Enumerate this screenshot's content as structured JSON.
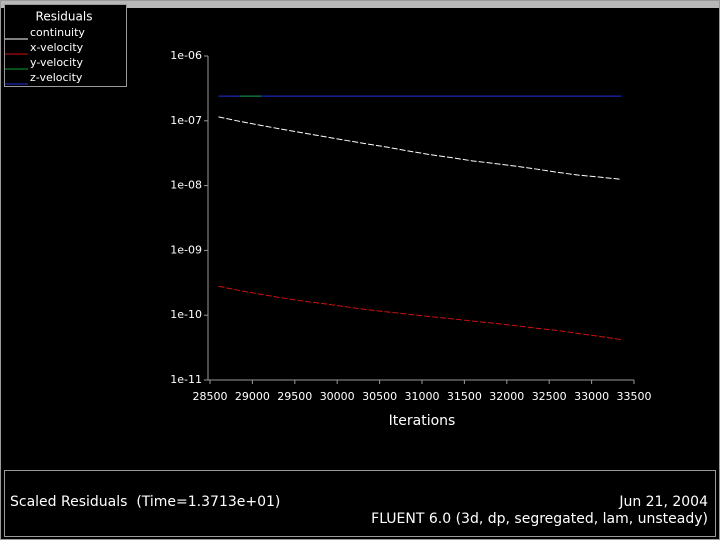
{
  "chart_data": {
    "type": "line",
    "title": "Scaled Residuals  (Time=1.3713e+01)",
    "annotations": [
      "Jun 21, 2004",
      "FLUENT 6.0 (3d, dp, segregated, lam, unsteady)"
    ],
    "legend_title": "Residuals",
    "legend": "top-left",
    "xlabel": "Iterations",
    "log_y": true,
    "xlim": [
      28500,
      33500
    ],
    "xticks": [
      28500,
      29000,
      29500,
      30000,
      30500,
      31000,
      31500,
      32000,
      32500,
      33000,
      33500
    ],
    "ylim": [
      1e-11,
      1e-06
    ],
    "yticks": [
      {
        "value": 1e-11,
        "label": "1e-11"
      },
      {
        "value": 1e-10,
        "label": "1e-10"
      },
      {
        "value": 1e-09,
        "label": "1e-09"
      },
      {
        "value": 1e-08,
        "label": "1e-08"
      },
      {
        "value": 1e-07,
        "label": "1e-07"
      },
      {
        "value": 1e-06,
        "label": "1e-06"
      }
    ],
    "x": [
      28600,
      28850,
      29100,
      29350,
      29600,
      29850,
      30100,
      30350,
      30600,
      30850,
      31100,
      31350,
      31600,
      31850,
      32100,
      32350,
      32600,
      32850,
      33100,
      33350
    ],
    "series": [
      {
        "name": "continuity",
        "color": "#ffffff",
        "values": [
          1.15e-07,
          9.8e-08,
          8.5e-08,
          7.4e-08,
          6.5e-08,
          5.7e-08,
          5e-08,
          4.4e-08,
          3.9e-08,
          3.4e-08,
          3e-08,
          2.7e-08,
          2.4e-08,
          2.2e-08,
          2e-08,
          1.8e-08,
          1.6e-08,
          1.45e-08,
          1.35e-08,
          1.25e-08
        ]
      },
      {
        "name": "x-velocity",
        "color": "#d01010",
        "values": [
          2.8e-10,
          2.4e-10,
          2.1e-10,
          1.85e-10,
          1.65e-10,
          1.5e-10,
          1.35e-10,
          1.22e-10,
          1.12e-10,
          1.03e-10,
          9.5e-11,
          8.8e-11,
          8.1e-11,
          7.5e-11,
          6.9e-11,
          6.3e-11,
          5.8e-11,
          5.2e-11,
          4.7e-11,
          4.2e-11
        ]
      },
      {
        "name": "y-velocity",
        "color": "#10a030",
        "values": [
          null,
          2.4e-07,
          2.4e-07,
          null,
          null,
          null,
          null,
          null,
          null,
          null,
          null,
          null,
          null,
          null,
          null,
          null,
          null,
          null,
          null,
          null
        ]
      },
      {
        "name": "z-velocity",
        "color": "#2030e0",
        "values": [
          2.4e-07,
          2.4e-07,
          2.4e-07,
          2.4e-07,
          2.4e-07,
          2.4e-07,
          2.4e-07,
          2.4e-07,
          2.4e-07,
          2.4e-07,
          2.4e-07,
          2.4e-07,
          2.4e-07,
          2.4e-07,
          2.4e-07,
          2.4e-07,
          2.4e-07,
          2.4e-07,
          2.4e-07,
          2.4e-07
        ]
      }
    ]
  }
}
